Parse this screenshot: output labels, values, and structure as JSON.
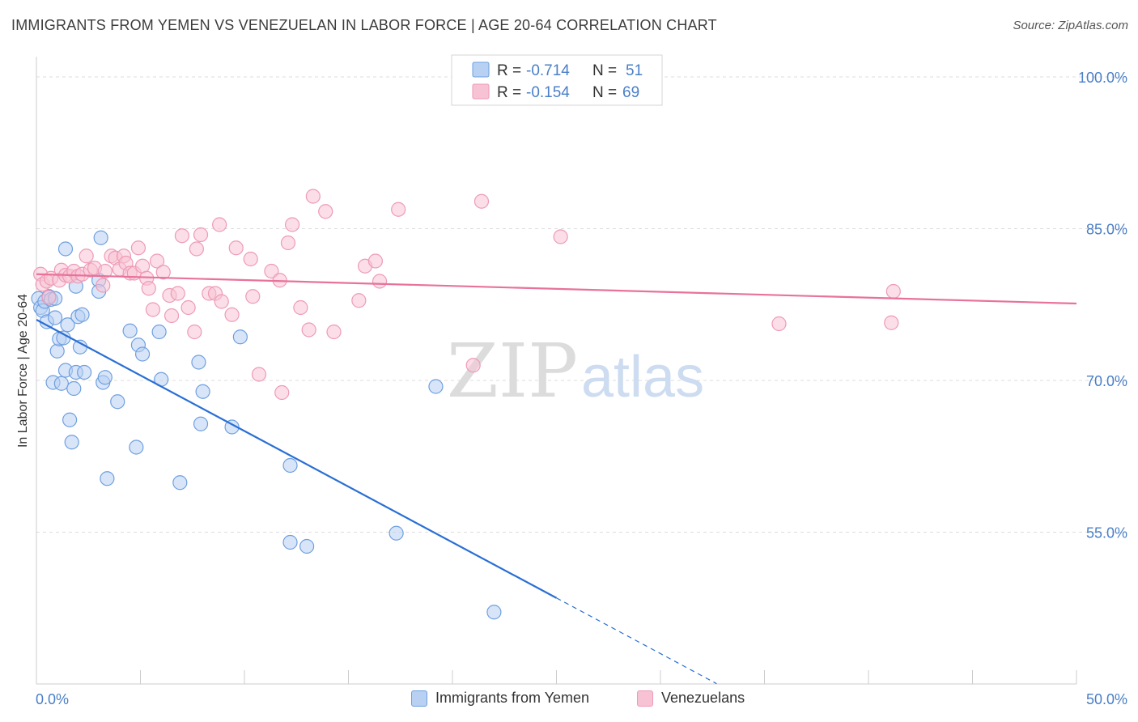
{
  "title": "IMMIGRANTS FROM YEMEN VS VENEZUELAN IN LABOR FORCE | AGE 20-64 CORRELATION CHART",
  "source": "Source: ZipAtlas.com",
  "watermark": {
    "zip": "ZIP",
    "atlas": "atlas"
  },
  "legend_top": {
    "r_label": "R =",
    "n_label": "N =",
    "rows": [
      {
        "r": "-0.714",
        "n": "51"
      },
      {
        "r": "-0.154",
        "n": "69"
      }
    ]
  },
  "legend_bottom": {
    "yemen": "Immigrants from Yemen",
    "venezuelans": "Venezuelans"
  },
  "colors": {
    "yemen_fill": "#b8d0f2",
    "yemen_stroke": "#6e9fe0",
    "yemen_line": "#2a6fd4",
    "venez_fill": "#f7c3d4",
    "venez_stroke": "#ee9ab6",
    "venez_line": "#e8729a",
    "tick": "#4a7fc8",
    "grid": "#dddddd"
  },
  "chart_data": {
    "type": "scatter",
    "ylabel": "In Labor Force | Age 20-64",
    "xlim": [
      0,
      50
    ],
    "ylim": [
      40,
      102
    ],
    "x_ticks": [
      "0.0%",
      "50.0%"
    ],
    "y_ticks": [
      {
        "v": 55,
        "label": "55.0%"
      },
      {
        "v": 70,
        "label": "70.0%"
      },
      {
        "v": 85,
        "label": "85.0%"
      },
      {
        "v": 100,
        "label": "100.0%"
      }
    ],
    "grid": true,
    "series": [
      {
        "name": "Immigrants from Yemen",
        "key": "yemen",
        "r": -0.714,
        "n": 51,
        "trend": {
          "x0": 0,
          "y0": 76.0,
          "x1": 25.0,
          "y1": 48.5,
          "dash_to_x": 32.7
        },
        "points": [
          [
            0.1,
            78.1
          ],
          [
            0.2,
            77.2
          ],
          [
            0.3,
            76.9
          ],
          [
            0.4,
            77.8
          ],
          [
            0.5,
            75.8
          ],
          [
            0.6,
            78.3
          ],
          [
            0.7,
            78.0
          ],
          [
            0.8,
            69.8
          ],
          [
            0.9,
            78.1
          ],
          [
            0.9,
            76.2
          ],
          [
            1.0,
            72.9
          ],
          [
            1.1,
            74.1
          ],
          [
            1.2,
            69.7
          ],
          [
            1.3,
            74.2
          ],
          [
            1.4,
            83.0
          ],
          [
            1.4,
            71.0
          ],
          [
            1.5,
            75.5
          ],
          [
            1.6,
            66.1
          ],
          [
            1.7,
            63.9
          ],
          [
            1.8,
            69.2
          ],
          [
            1.9,
            70.8
          ],
          [
            1.9,
            79.3
          ],
          [
            2.0,
            76.3
          ],
          [
            2.1,
            73.3
          ],
          [
            2.2,
            76.5
          ],
          [
            2.3,
            70.8
          ],
          [
            3.0,
            79.9
          ],
          [
            3.0,
            78.8
          ],
          [
            3.1,
            84.1
          ],
          [
            3.2,
            69.8
          ],
          [
            3.3,
            70.3
          ],
          [
            3.4,
            60.3
          ],
          [
            3.9,
            67.9
          ],
          [
            4.5,
            74.9
          ],
          [
            4.8,
            63.4
          ],
          [
            4.9,
            73.5
          ],
          [
            5.1,
            72.6
          ],
          [
            5.9,
            74.8
          ],
          [
            6.0,
            70.1
          ],
          [
            6.9,
            59.9
          ],
          [
            7.8,
            71.8
          ],
          [
            7.9,
            65.7
          ],
          [
            8.0,
            68.9
          ],
          [
            9.4,
            65.4
          ],
          [
            9.8,
            74.3
          ],
          [
            12.2,
            61.6
          ],
          [
            12.2,
            54.0
          ],
          [
            13.0,
            53.6
          ],
          [
            17.3,
            54.9
          ],
          [
            19.2,
            69.4
          ],
          [
            22.0,
            47.1
          ]
        ]
      },
      {
        "name": "Venezuelans",
        "key": "venez",
        "r": -0.154,
        "n": 69,
        "trend": {
          "x0": 0,
          "y0": 80.5,
          "x1": 50,
          "y1": 77.6
        },
        "points": [
          [
            0.2,
            80.5
          ],
          [
            0.3,
            79.5
          ],
          [
            0.5,
            79.8
          ],
          [
            0.6,
            78.2
          ],
          [
            0.7,
            80.1
          ],
          [
            1.1,
            79.9
          ],
          [
            1.2,
            80.9
          ],
          [
            1.4,
            80.4
          ],
          [
            1.6,
            80.3
          ],
          [
            1.8,
            80.8
          ],
          [
            2.0,
            80.3
          ],
          [
            2.2,
            80.5
          ],
          [
            2.4,
            82.3
          ],
          [
            2.6,
            80.9
          ],
          [
            2.8,
            81.1
          ],
          [
            3.2,
            79.4
          ],
          [
            3.3,
            80.8
          ],
          [
            3.6,
            82.3
          ],
          [
            3.8,
            82.1
          ],
          [
            4.0,
            81.0
          ],
          [
            4.2,
            82.3
          ],
          [
            4.3,
            81.6
          ],
          [
            4.5,
            80.6
          ],
          [
            4.7,
            80.6
          ],
          [
            4.9,
            83.1
          ],
          [
            5.1,
            81.3
          ],
          [
            5.3,
            80.1
          ],
          [
            5.4,
            79.1
          ],
          [
            5.6,
            77.0
          ],
          [
            5.8,
            81.8
          ],
          [
            6.1,
            80.7
          ],
          [
            6.4,
            78.4
          ],
          [
            6.5,
            76.4
          ],
          [
            6.8,
            78.6
          ],
          [
            7.0,
            84.3
          ],
          [
            7.3,
            77.2
          ],
          [
            7.6,
            74.8
          ],
          [
            7.7,
            83.0
          ],
          [
            7.9,
            84.4
          ],
          [
            8.3,
            78.6
          ],
          [
            8.6,
            78.6
          ],
          [
            8.8,
            85.4
          ],
          [
            8.9,
            77.8
          ],
          [
            9.4,
            76.5
          ],
          [
            9.6,
            83.1
          ],
          [
            10.3,
            82.0
          ],
          [
            10.4,
            78.3
          ],
          [
            10.7,
            70.6
          ],
          [
            11.3,
            80.8
          ],
          [
            11.7,
            79.9
          ],
          [
            11.8,
            68.8
          ],
          [
            12.1,
            83.6
          ],
          [
            12.3,
            85.4
          ],
          [
            12.7,
            77.2
          ],
          [
            13.1,
            75.0
          ],
          [
            13.3,
            88.2
          ],
          [
            13.9,
            86.7
          ],
          [
            14.3,
            74.8
          ],
          [
            15.5,
            77.9
          ],
          [
            15.8,
            81.3
          ],
          [
            16.3,
            81.8
          ],
          [
            16.5,
            79.8
          ],
          [
            17.4,
            86.9
          ],
          [
            21.0,
            71.5
          ],
          [
            21.4,
            87.7
          ],
          [
            25.2,
            84.2
          ],
          [
            35.7,
            75.6
          ],
          [
            41.1,
            75.7
          ],
          [
            41.2,
            78.8
          ]
        ]
      }
    ]
  }
}
